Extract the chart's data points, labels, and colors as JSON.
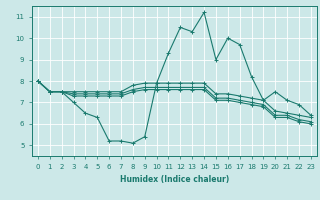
{
  "xlabel": "Humidex (Indice chaleur)",
  "bg_color": "#cce8e8",
  "grid_color": "#ffffff",
  "line_color": "#1a7a6e",
  "xlim": [
    -0.5,
    23.5
  ],
  "ylim": [
    4.5,
    11.5
  ],
  "xticks": [
    0,
    1,
    2,
    3,
    4,
    5,
    6,
    7,
    8,
    9,
    10,
    11,
    12,
    13,
    14,
    15,
    16,
    17,
    18,
    19,
    20,
    21,
    22,
    23
  ],
  "yticks": [
    5,
    6,
    7,
    8,
    9,
    10,
    11
  ],
  "line1_x": [
    0,
    1,
    2,
    3,
    4,
    5,
    6,
    7,
    8,
    9,
    10,
    11,
    12,
    13,
    14,
    15,
    16,
    17,
    18,
    19,
    20,
    21,
    22,
    23
  ],
  "line1_y": [
    8.0,
    7.5,
    7.5,
    7.0,
    6.5,
    6.3,
    5.2,
    5.2,
    5.1,
    5.4,
    7.9,
    9.3,
    10.5,
    10.3,
    11.2,
    9.0,
    10.0,
    9.7,
    8.2,
    7.1,
    7.5,
    7.1,
    6.9,
    6.4
  ],
  "line2_x": [
    0,
    1,
    2,
    3,
    4,
    5,
    6,
    7,
    8,
    9,
    10,
    11,
    12,
    13,
    14,
    15,
    16,
    17,
    18,
    19,
    20,
    21,
    22,
    23
  ],
  "line2_y": [
    8.0,
    7.5,
    7.5,
    7.5,
    7.5,
    7.5,
    7.5,
    7.5,
    7.8,
    7.9,
    7.9,
    7.9,
    7.9,
    7.9,
    7.9,
    7.4,
    7.4,
    7.3,
    7.2,
    7.1,
    6.6,
    6.5,
    6.4,
    6.3
  ],
  "line3_x": [
    0,
    1,
    2,
    3,
    4,
    5,
    6,
    7,
    8,
    9,
    10,
    11,
    12,
    13,
    14,
    15,
    16,
    17,
    18,
    19,
    20,
    21,
    22,
    23
  ],
  "line3_y": [
    8.0,
    7.5,
    7.5,
    7.4,
    7.4,
    7.4,
    7.4,
    7.4,
    7.6,
    7.7,
    7.7,
    7.7,
    7.7,
    7.7,
    7.7,
    7.2,
    7.2,
    7.1,
    7.0,
    6.9,
    6.4,
    6.4,
    6.2,
    6.1
  ],
  "line4_x": [
    0,
    1,
    2,
    3,
    4,
    5,
    6,
    7,
    8,
    9,
    10,
    11,
    12,
    13,
    14,
    15,
    16,
    17,
    18,
    19,
    20,
    21,
    22,
    23
  ],
  "line4_y": [
    8.0,
    7.5,
    7.5,
    7.3,
    7.3,
    7.3,
    7.3,
    7.3,
    7.5,
    7.6,
    7.6,
    7.6,
    7.6,
    7.6,
    7.6,
    7.1,
    7.1,
    7.0,
    6.9,
    6.8,
    6.3,
    6.3,
    6.1,
    6.0
  ],
  "xlabel_fontsize": 5.5,
  "tick_fontsize": 5,
  "lw": 0.8,
  "ms": 2.5
}
